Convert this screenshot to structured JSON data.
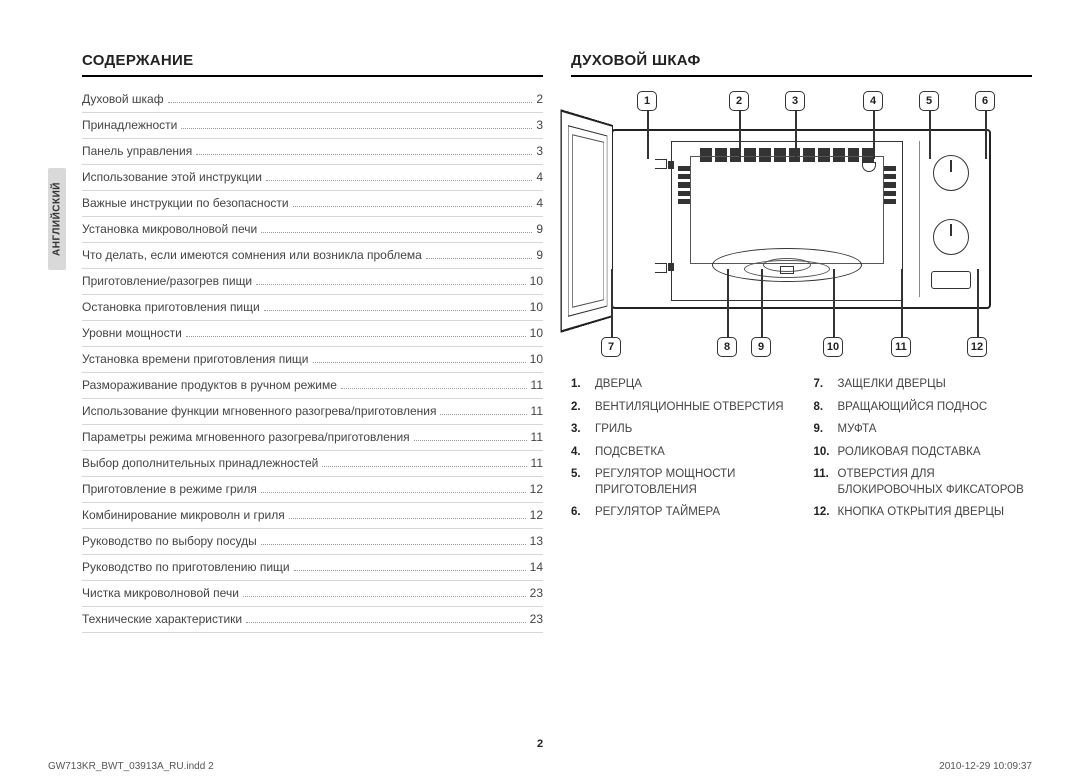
{
  "side_tab": "АНГЛИЙСКИЙ",
  "left": {
    "title": "СОДЕРЖАНИЕ",
    "toc": [
      {
        "label": "Духовой шкаф",
        "page": "2"
      },
      {
        "label": "Принадлежности",
        "page": "3"
      },
      {
        "label": "Панель управления",
        "page": "3"
      },
      {
        "label": "Использование этой инструкции",
        "page": "4"
      },
      {
        "label": "Важные инструкции по безопасности",
        "page": "4"
      },
      {
        "label": "Установка микроволновой печи",
        "page": "9"
      },
      {
        "label": "Что делать, если имеются сомнения или возникла проблема",
        "page": "9"
      },
      {
        "label": "Приготовление/разогрев пищи",
        "page": "10"
      },
      {
        "label": "Остановка приготовления пищи",
        "page": "10"
      },
      {
        "label": "Уровни мощности",
        "page": "10"
      },
      {
        "label": "Установка времени приготовления пищи",
        "page": "10"
      },
      {
        "label": "Размораживание продуктов в ручном режиме",
        "page": "11"
      },
      {
        "label": "Использование функции мгновенного разогрева/приготовления",
        "page": "11"
      },
      {
        "label": "Параметры режима мгновенного разогрева/приготовления",
        "page": "11"
      },
      {
        "label": "Выбор дополнительных принадлежностей",
        "page": "11"
      },
      {
        "label": "Приготовление в режиме гриля",
        "page": "12"
      },
      {
        "label": "Комбинирование микроволн и гриля",
        "page": "12"
      },
      {
        "label": "Руководство по выбору посуды",
        "page": "13"
      },
      {
        "label": "Руководство по приготовлению пищи",
        "page": "14"
      },
      {
        "label": "Чистка микроволновой печи",
        "page": "23"
      },
      {
        "label": "Технические характеристики",
        "page": "23"
      }
    ]
  },
  "right": {
    "title": "ДУХОВОЙ ШКАФ",
    "callouts_top": [
      "1",
      "2",
      "3",
      "4",
      "5",
      "6"
    ],
    "callouts_bottom": [
      "7",
      "8",
      "9",
      "10",
      "11",
      "12"
    ],
    "legend_left": [
      {
        "n": "1.",
        "t": "ДВЕРЦА"
      },
      {
        "n": "2.",
        "t": "ВЕНТИЛЯЦИОННЫЕ ОТВЕРСТИЯ"
      },
      {
        "n": "3.",
        "t": "ГРИЛЬ"
      },
      {
        "n": "4.",
        "t": "ПОДСВЕТКА"
      },
      {
        "n": "5.",
        "t": "РЕГУЛЯТОР МОЩНОСТИ ПРИГОТОВЛЕНИЯ"
      },
      {
        "n": "6.",
        "t": "РЕГУЛЯТОР ТАЙМЕРА"
      }
    ],
    "legend_right": [
      {
        "n": "7.",
        "t": "ЗАЩЕЛКИ ДВЕРЦЫ"
      },
      {
        "n": "8.",
        "t": "ВРАЩАЮЩИЙСЯ ПОДНОС"
      },
      {
        "n": "9.",
        "t": "МУФТА"
      },
      {
        "n": "10.",
        "t": "РОЛИКОВАЯ ПОДСТАВКА"
      },
      {
        "n": "11.",
        "t": "ОТВЕРСТИЯ ДЛЯ БЛОКИРОВОЧНЫХ ФИКСАТОРОВ"
      },
      {
        "n": "12.",
        "t": "КНОПКА ОТКРЫТИЯ ДВЕРЦЫ"
      }
    ]
  },
  "page_number": "2",
  "footer_left": "GW713KR_BWT_03913A_RU.indd   2",
  "footer_right": "2010-12-29   10:09:37",
  "diagram": {
    "callout_top_x": [
      76,
      168,
      224,
      302,
      358,
      414
    ],
    "callout_bottom_x": [
      40,
      156,
      190,
      262,
      330,
      406
    ],
    "colors": {
      "line": "#333333",
      "border": "#222222"
    }
  }
}
